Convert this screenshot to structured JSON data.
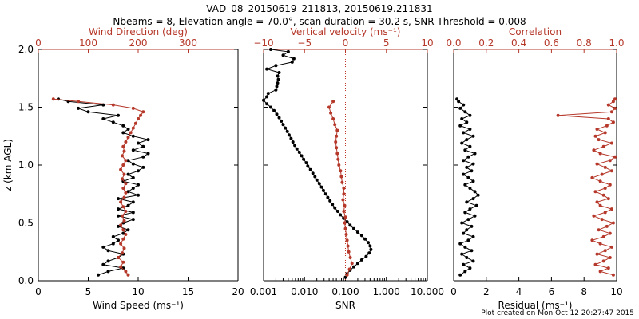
{
  "header": {
    "title_line1": "VAD_08_20150619_211813, 20150619.211831",
    "title_line2": "Nbeams = 8, Elevation angle = 70.0°, scan duration = 30.2 s, SNR Threshold = 0.008"
  },
  "footer": {
    "plot_created": "Plot created on Mon Oct 12 20:27:47 2015"
  },
  "colors": {
    "primary": "#000000",
    "secondary": "#b5382a",
    "zero_line": "#c0392b"
  },
  "chart_data": [
    {
      "type": "line",
      "panel": "wind",
      "ylabel": "z (km AGL)",
      "ylim": [
        0,
        2
      ],
      "yticks": [
        0.0,
        0.5,
        1.0,
        1.5,
        2.0
      ],
      "ytick_labels": [
        "0.0",
        "0.5",
        "1.0",
        "1.5",
        "2.0"
      ],
      "bottom_axis": {
        "label": "Wind Speed (ms⁻¹)",
        "range": [
          0,
          20
        ],
        "ticks": [
          0,
          5,
          10,
          15,
          20
        ],
        "tick_labels": [
          "0",
          "5",
          "10",
          "15",
          "20"
        ]
      },
      "top_axis": {
        "label": "Wind Direction (deg)",
        "range": [
          0,
          400
        ],
        "ticks": [
          0,
          100,
          200,
          300
        ],
        "tick_labels": [
          "0",
          "100",
          "200",
          "300"
        ]
      },
      "series": [
        {
          "axis": "bottom",
          "color": "#000000",
          "z": [
            0.05,
            0.08,
            0.11,
            0.14,
            0.17,
            0.2,
            0.23,
            0.26,
            0.29,
            0.32,
            0.35,
            0.38,
            0.41,
            0.44,
            0.47,
            0.5,
            0.53,
            0.56,
            0.59,
            0.62,
            0.65,
            0.68,
            0.71,
            0.74,
            0.77,
            0.8,
            0.83,
            0.86,
            0.89,
            0.92,
            0.95,
            0.98,
            1.01,
            1.04,
            1.07,
            1.1,
            1.13,
            1.16,
            1.19,
            1.22,
            1.25,
            1.28,
            1.31,
            1.34,
            1.37,
            1.4,
            1.43,
            1.46,
            1.49,
            1.52,
            1.55,
            1.57
          ],
          "values": [
            6,
            7,
            8.5,
            6.5,
            7,
            8,
            8.5,
            7,
            6.5,
            7.5,
            8,
            7.5,
            8.5,
            9,
            8,
            8.5,
            9.5,
            8,
            9.5,
            8,
            9,
            9.5,
            8,
            10,
            9,
            9.5,
            10,
            8.5,
            9.5,
            9,
            10,
            10.5,
            9.5,
            9,
            10.5,
            11,
            9.5,
            10.5,
            10,
            11,
            9.5,
            8.5,
            9,
            8.5,
            7.5,
            6.5,
            8,
            5,
            4,
            6.5,
            3,
            2
          ]
        },
        {
          "axis": "top",
          "color": "#b5382a",
          "z": [
            0.05,
            0.08,
            0.12,
            0.16,
            0.2,
            0.24,
            0.28,
            0.32,
            0.36,
            0.4,
            0.44,
            0.48,
            0.52,
            0.56,
            0.6,
            0.64,
            0.68,
            0.72,
            0.76,
            0.8,
            0.84,
            0.88,
            0.92,
            0.96,
            1.0,
            1.04,
            1.08,
            1.12,
            1.16,
            1.2,
            1.24,
            1.28,
            1.32,
            1.36,
            1.4,
            1.43,
            1.46,
            1.49,
            1.52,
            1.55,
            1.57
          ],
          "values": [
            180,
            175,
            165,
            170,
            160,
            168,
            172,
            165,
            170,
            175,
            170,
            165,
            172,
            168,
            175,
            170,
            165,
            172,
            175,
            170,
            175,
            168,
            172,
            165,
            170,
            175,
            168,
            172,
            170,
            175,
            180,
            185,
            190,
            195,
            200,
            205,
            210,
            190,
            150,
            80,
            30
          ]
        }
      ]
    },
    {
      "type": "line",
      "panel": "snr",
      "ylim": [
        0,
        2
      ],
      "bottom_axis": {
        "label": "SNR",
        "scale": "log",
        "range": [
          0.001,
          10
        ],
        "ticks": [
          0.001,
          0.01,
          0.1,
          1,
          10
        ],
        "tick_labels": [
          "0.001",
          "0.010",
          "0.100",
          "1.000",
          "10.000"
        ]
      },
      "top_axis": {
        "label": "Vertical velocity (ms⁻¹)",
        "range": [
          -10,
          10
        ],
        "ticks": [
          -10,
          -5,
          0,
          5,
          10
        ],
        "tick_labels": [
          "−10",
          "−5",
          "0",
          "5",
          "10"
        ],
        "zero_line": 0
      },
      "series": [
        {
          "axis": "bottom",
          "color": "#000000",
          "z": [
            0.03,
            0.06,
            0.09,
            0.12,
            0.15,
            0.18,
            0.21,
            0.24,
            0.27,
            0.3,
            0.33,
            0.36,
            0.39,
            0.42,
            0.45,
            0.48,
            0.51,
            0.54,
            0.57,
            0.6,
            0.63,
            0.66,
            0.69,
            0.72,
            0.75,
            0.78,
            0.81,
            0.84,
            0.87,
            0.9,
            0.93,
            0.96,
            0.99,
            1.02,
            1.05,
            1.08,
            1.11,
            1.14,
            1.17,
            1.2,
            1.23,
            1.26,
            1.29,
            1.32,
            1.35,
            1.38,
            1.41,
            1.44,
            1.47,
            1.5,
            1.53,
            1.56,
            1.59,
            1.62,
            1.65,
            1.68,
            1.71,
            1.74,
            1.77,
            1.8,
            1.83,
            1.86,
            1.89,
            1.92,
            1.95,
            1.98,
            2.0
          ],
          "values": [
            0.1,
            0.11,
            0.13,
            0.16,
            0.2,
            0.25,
            0.32,
            0.38,
            0.42,
            0.4,
            0.36,
            0.3,
            0.25,
            0.2,
            0.16,
            0.13,
            0.11,
            0.09,
            0.075,
            0.065,
            0.055,
            0.048,
            0.042,
            0.037,
            0.033,
            0.029,
            0.026,
            0.023,
            0.02,
            0.018,
            0.016,
            0.014,
            0.012,
            0.011,
            0.0095,
            0.0085,
            0.0075,
            0.0065,
            0.0058,
            0.0052,
            0.0047,
            0.0042,
            0.0038,
            0.0034,
            0.003,
            0.0027,
            0.0024,
            0.0021,
            0.0018,
            0.0015,
            0.0012,
            0.001,
            0.0012,
            0.0013,
            0.002,
            0.0021,
            0.0022,
            0.0023,
            0.0022,
            0.0024,
            0.0012,
            0.002,
            0.005,
            0.0055,
            0.003,
            0.004,
            0.0015
          ]
        },
        {
          "axis": "top",
          "color": "#b5382a",
          "z": [
            0.05,
            0.1,
            0.15,
            0.2,
            0.25,
            0.3,
            0.35,
            0.4,
            0.45,
            0.5,
            0.55,
            0.6,
            0.65,
            0.7,
            0.75,
            0.8,
            0.85,
            0.9,
            0.95,
            1.0,
            1.05,
            1.1,
            1.15,
            1.2,
            1.25,
            1.3,
            1.35,
            1.4,
            1.45,
            1.5,
            1.55
          ],
          "values": [
            0.2,
            0.5,
            0.8,
            0.6,
            0.4,
            0.3,
            0.2,
            0.1,
            0.0,
            -0.1,
            0.0,
            -0.2,
            -0.1,
            -0.3,
            -0.2,
            -0.2,
            -0.4,
            -0.5,
            -0.6,
            -0.8,
            -0.9,
            -1.0,
            -1.1,
            -1.2,
            -1.1,
            -1.0,
            -1.3,
            -1.5,
            -1.8,
            -2.0,
            -1.5
          ]
        }
      ]
    },
    {
      "type": "line",
      "panel": "residual",
      "ylim": [
        0,
        2
      ],
      "bottom_axis": {
        "label": "Residual (ms⁻¹)",
        "range": [
          0,
          10
        ],
        "ticks": [
          0,
          2,
          4,
          6,
          8,
          10
        ],
        "tick_labels": [
          "0",
          "2",
          "4",
          "6",
          "8",
          "10"
        ]
      },
      "top_axis": {
        "label": "Correlation",
        "range": [
          0,
          1
        ],
        "ticks": [
          0,
          0.2,
          0.4,
          0.6,
          0.8,
          1.0
        ],
        "tick_labels": [
          "0.0",
          "0.2",
          "0.4",
          "0.6",
          "0.8",
          "1.0"
        ]
      },
      "series": [
        {
          "axis": "bottom",
          "color": "#000000",
          "z": [
            0.05,
            0.08,
            0.11,
            0.14,
            0.17,
            0.2,
            0.23,
            0.26,
            0.29,
            0.32,
            0.35,
            0.38,
            0.41,
            0.44,
            0.47,
            0.5,
            0.53,
            0.56,
            0.59,
            0.62,
            0.65,
            0.68,
            0.71,
            0.74,
            0.77,
            0.8,
            0.83,
            0.86,
            0.89,
            0.92,
            0.95,
            0.98,
            1.01,
            1.04,
            1.07,
            1.1,
            1.13,
            1.16,
            1.19,
            1.22,
            1.25,
            1.28,
            1.31,
            1.34,
            1.37,
            1.4,
            1.43,
            1.46,
            1.49,
            1.52,
            1.55,
            1.57
          ],
          "values": [
            0.4,
            0.7,
            1.0,
            0.6,
            1.2,
            0.8,
            0.5,
            1.1,
            0.7,
            0.4,
            0.9,
            1.2,
            0.6,
            0.8,
            1.1,
            0.5,
            0.9,
            1.3,
            0.7,
            1.0,
            1.4,
            0.8,
            1.2,
            1.5,
            1.3,
            1.0,
            0.7,
            1.2,
            0.9,
            0.6,
            1.1,
            0.8,
            1.2,
            0.6,
            0.9,
            1.3,
            0.7,
            1.0,
            0.5,
            0.8,
            1.2,
            0.6,
            1.0,
            0.4,
            0.8,
            0.5,
            1.0,
            0.7,
            0.4,
            0.6,
            0.3,
            0.2
          ]
        },
        {
          "axis": "top",
          "color": "#b5382a",
          "z": [
            0.05,
            0.08,
            0.11,
            0.14,
            0.17,
            0.2,
            0.23,
            0.26,
            0.29,
            0.32,
            0.35,
            0.38,
            0.41,
            0.44,
            0.47,
            0.5,
            0.53,
            0.56,
            0.59,
            0.62,
            0.65,
            0.68,
            0.71,
            0.74,
            0.77,
            0.8,
            0.83,
            0.86,
            0.89,
            0.92,
            0.95,
            0.98,
            1.01,
            1.04,
            1.07,
            1.1,
            1.13,
            1.16,
            1.19,
            1.22,
            1.25,
            1.28,
            1.31,
            1.34,
            1.37,
            1.4,
            1.43,
            1.46,
            1.49,
            1.52,
            1.55,
            1.57
          ],
          "values": [
            0.98,
            0.9,
            0.95,
            0.87,
            0.92,
            0.96,
            0.88,
            0.93,
            0.97,
            0.9,
            0.85,
            0.92,
            0.96,
            0.89,
            0.94,
            0.98,
            0.91,
            0.86,
            0.93,
            0.97,
            0.9,
            0.88,
            0.95,
            0.92,
            0.87,
            0.93,
            0.96,
            0.9,
            0.85,
            0.91,
            0.97,
            0.93,
            0.88,
            0.96,
            0.99,
            0.9,
            0.86,
            0.92,
            0.97,
            0.89,
            0.87,
            0.93,
            0.88,
            0.94,
            0.98,
            0.95,
            0.64,
            0.97,
            0.99,
            0.95,
            0.98,
            0.99
          ]
        }
      ]
    }
  ]
}
